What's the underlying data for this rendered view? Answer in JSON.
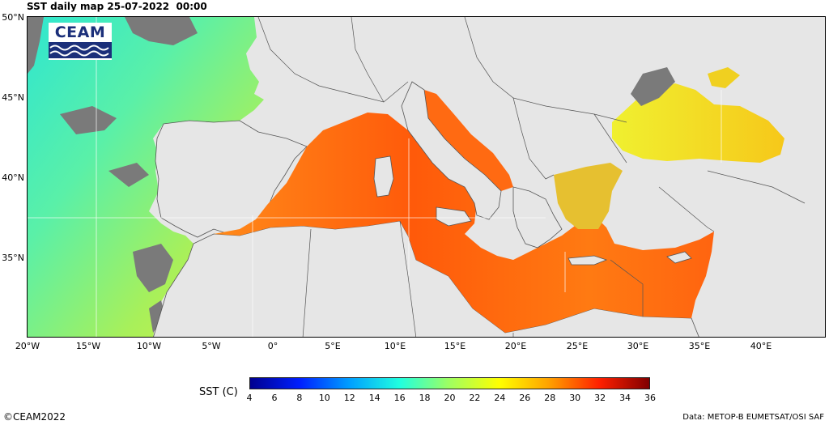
{
  "title": "SST daily map 25-07-2022  00:00",
  "logo": {
    "text": "CEAM"
  },
  "latitude_labels": [
    "50°N",
    "45°N",
    "40°N",
    "35°N"
  ],
  "longitude_labels": [
    "20°W",
    "15°W",
    "10°W",
    "5°W",
    "0°",
    "5°E",
    "10°E",
    "15°E",
    "20°E",
    "25°E",
    "30°E",
    "35°E",
    "40°E"
  ],
  "colorbar": {
    "label": "SST (C)",
    "ticks": [
      "4",
      "6",
      "8",
      "10",
      "12",
      "14",
      "16",
      "18",
      "20",
      "22",
      "24",
      "26",
      "28",
      "30",
      "32",
      "34",
      "36"
    ],
    "colors": [
      "#00008f",
      "#0020ff",
      "#00a0ff",
      "#20ffdf",
      "#a0ff60",
      "#ffff00",
      "#ffa000",
      "#ff2000",
      "#800000"
    ]
  },
  "map_colors": {
    "land": "#e6e6e6",
    "no_data": "#7a7a7a",
    "mediterranean": "#ff7a10",
    "black_sea": "#f2e81a",
    "atlantic": "#66e8a0"
  },
  "copyright": "©CEAM2022",
  "data_source": "Data: METOP-B EUMETSAT/OSI SAF"
}
